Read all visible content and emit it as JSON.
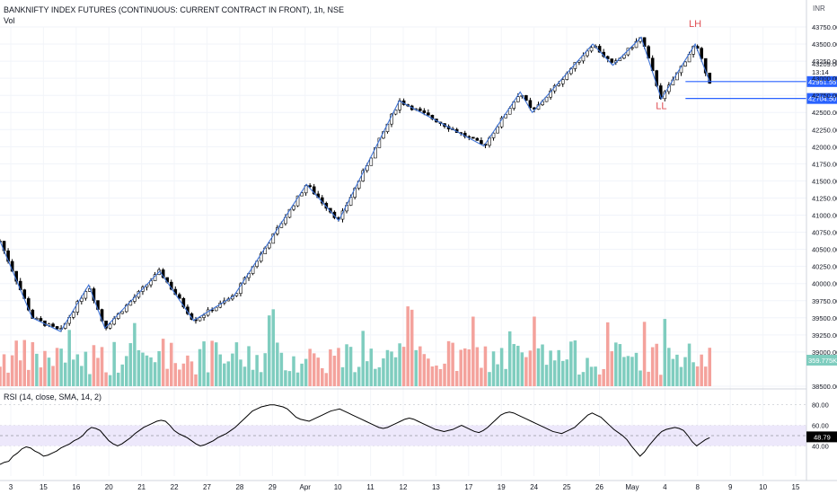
{
  "header": {
    "title": "BANKNIFTY INDEX FUTURES (CONTINUOUS: CURRENT CONTRACT IN FRONT), 1h, NSE",
    "vol_label": "Vol",
    "rsi_label": "RSI (14, close, SMA, 14, 2)",
    "currency": "INR"
  },
  "colors": {
    "candle_up": "#ffffff",
    "candle_down": "#000000",
    "zigzag": "#3d72d6",
    "level_line": "#2962ff",
    "vol_up": "#7fcdbf",
    "vol_down": "#f4a29c",
    "rsi_line": "#000000",
    "rsi_band": "#ede8fb",
    "annotation": "#e04f54"
  },
  "chart_data": {
    "type": "candlestick",
    "price_axis": {
      "min": 38500,
      "max": 43750,
      "ticks": [
        "38500.00",
        "39000.00",
        "39250.00",
        "39500.00",
        "39750.00",
        "40000.00",
        "40250.00",
        "40500.00",
        "40750.00",
        "41000.00",
        "41250.00",
        "41500.00",
        "41750.00",
        "42000.00",
        "42250.00",
        "42500.00",
        "42750.00",
        "43000.00",
        "43250.00",
        "43500.00",
        "43750.00"
      ]
    },
    "time_axis": {
      "labels": [
        "3",
        "15",
        "16",
        "20",
        "21",
        "22",
        "27",
        "28",
        "29",
        "Apr",
        "10",
        "11",
        "12",
        "13",
        "17",
        "19",
        "24",
        "25",
        "26",
        "May",
        "4",
        "8",
        "9",
        "10",
        "15"
      ]
    },
    "current_price": {
      "value": "43209.00",
      "time_left": "13:14"
    },
    "levels": [
      {
        "label": "42951.55",
        "value": 42951.55
      },
      {
        "label": "42704.50",
        "value": 42704.5
      }
    ],
    "annotations": [
      {
        "text": "LH",
        "value": 43750
      },
      {
        "text": "LL",
        "value": 42550
      }
    ],
    "zigzag": [
      {
        "x": 0,
        "y": 40620
      },
      {
        "x": 0.04,
        "y": 39500
      },
      {
        "x": 0.075,
        "y": 39300
      },
      {
        "x": 0.11,
        "y": 39980
      },
      {
        "x": 0.13,
        "y": 39350
      },
      {
        "x": 0.198,
        "y": 40180
      },
      {
        "x": 0.24,
        "y": 39460
      },
      {
        "x": 0.29,
        "y": 39820
      },
      {
        "x": 0.38,
        "y": 41450
      },
      {
        "x": 0.42,
        "y": 40920
      },
      {
        "x": 0.495,
        "y": 42670
      },
      {
        "x": 0.53,
        "y": 42450
      },
      {
        "x": 0.6,
        "y": 42010
      },
      {
        "x": 0.645,
        "y": 42800
      },
      {
        "x": 0.66,
        "y": 42500
      },
      {
        "x": 0.735,
        "y": 43500
      },
      {
        "x": 0.76,
        "y": 43190
      },
      {
        "x": 0.795,
        "y": 43600
      },
      {
        "x": 0.82,
        "y": 42700
      },
      {
        "x": 0.862,
        "y": 43500
      },
      {
        "x": 0.88,
        "y": 42951
      }
    ],
    "volume": {
      "label": "359.775K"
    },
    "rsi": {
      "ticks": [
        "80.00",
        "60.00",
        "40.00"
      ],
      "band": [
        40,
        60
      ],
      "current": "48.79",
      "values": [
        22,
        24,
        25,
        30,
        33,
        37,
        39,
        38,
        35,
        33,
        30,
        31,
        33,
        35,
        38,
        40,
        42,
        45,
        47,
        50,
        55,
        58,
        57,
        55,
        50,
        45,
        42,
        40,
        42,
        45,
        48,
        52,
        55,
        58,
        60,
        62,
        64,
        65,
        64,
        60,
        55,
        52,
        50,
        48,
        45,
        42,
        40,
        41,
        43,
        45,
        48,
        50,
        52,
        55,
        58,
        62,
        66,
        70,
        74,
        76,
        78,
        79,
        80,
        80,
        79,
        78,
        76,
        72,
        68,
        66,
        65,
        64,
        66,
        68,
        70,
        72,
        74,
        75,
        76,
        74,
        72,
        70,
        68,
        66,
        64,
        62,
        60,
        58,
        57,
        58,
        60,
        62,
        64,
        66,
        67,
        66,
        64,
        62,
        60,
        58,
        56,
        55,
        54,
        55,
        56,
        58,
        60,
        58,
        56,
        54,
        53,
        55,
        58,
        62,
        66,
        70,
        72,
        73,
        72,
        70,
        68,
        66,
        64,
        62,
        60,
        58,
        56,
        54,
        53,
        52,
        54,
        56,
        58,
        62,
        66,
        70,
        72,
        70,
        68,
        64,
        60,
        56,
        53,
        50,
        46,
        40,
        35,
        30,
        34,
        40,
        45,
        50,
        54,
        56,
        57,
        58,
        57,
        55,
        50,
        44,
        40,
        43,
        46,
        48
      ]
    }
  }
}
